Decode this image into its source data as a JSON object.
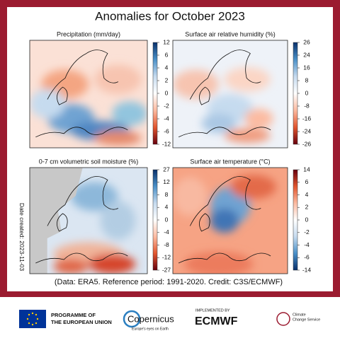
{
  "header": {
    "title": "Anomalies for October 2023"
  },
  "panels": [
    {
      "title": "Precipitation (mm/day)",
      "ticks": [
        12,
        6,
        4,
        2,
        0,
        -2,
        -4,
        -6,
        -12
      ],
      "colors": [
        "#08306b",
        "#4a90c8",
        "#c6dbef",
        "#ffffff",
        "#fcbba1",
        "#e2562f",
        "#67000d"
      ]
    },
    {
      "title": "Surface air relative humidity (%)",
      "ticks": [
        26,
        24,
        16,
        8,
        0,
        -8,
        -16,
        -24,
        -26
      ],
      "colors": [
        "#08306b",
        "#4a90c8",
        "#c6dbef",
        "#ffffff",
        "#fcbba1",
        "#e2562f",
        "#67000d"
      ]
    },
    {
      "title": "0-7 cm volumetric soil moisture (%)",
      "ticks": [
        27,
        12,
        8,
        4,
        0,
        -4,
        -8,
        -12,
        -27
      ],
      "colors": [
        "#08306b",
        "#4a90c8",
        "#c6dbef",
        "#ffffff",
        "#fcbba1",
        "#e2562f",
        "#67000d"
      ]
    },
    {
      "title": "Surface air temperature (°C)",
      "ticks": [
        14,
        6,
        4,
        2,
        0,
        -2,
        -4,
        -6,
        -14
      ],
      "colors": [
        "#67000d",
        "#e2562f",
        "#fcbba1",
        "#ffffff",
        "#c6dbef",
        "#4a90c8",
        "#08306b"
      ]
    }
  ],
  "date_created": "Date created: 2023-11-03",
  "credit": "(Data: ERA5. Reference period: 1991-2020. Credit: C3S/ECMWF)",
  "footer": {
    "eu": [
      "PROGRAMME OF",
      "THE EUROPEAN UNION"
    ],
    "copernicus": "Copernicus",
    "copernicus_tagline": "Europe's eyes on Earth",
    "implemented": "IMPLEMENTED BY",
    "ecmwf": "ECMWF",
    "c3s": [
      "Climate",
      "Change Service"
    ]
  }
}
